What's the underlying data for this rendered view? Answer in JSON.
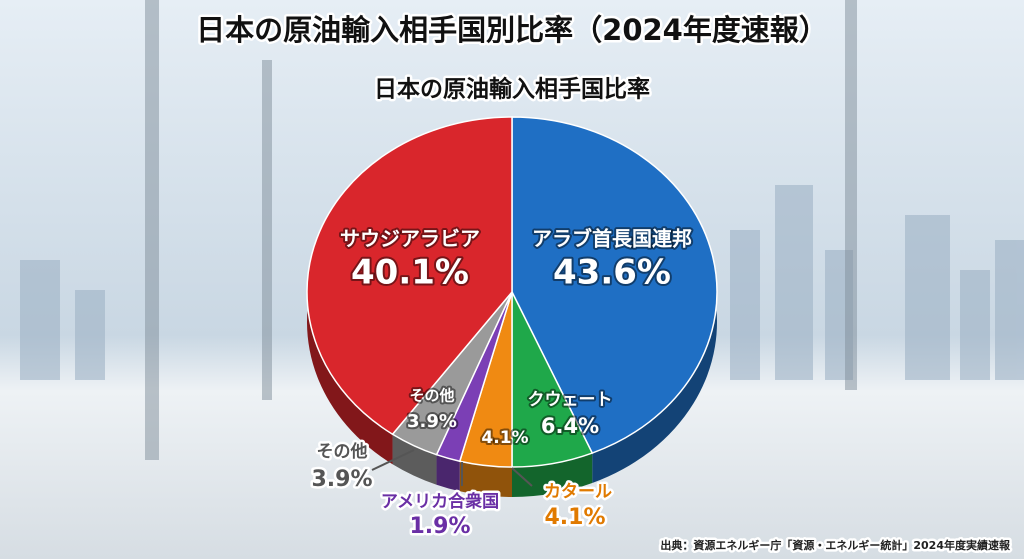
{
  "chart_data": {
    "type": "pie",
    "title": "日本の原油輸入相手国別比率（2024年度速報）",
    "subtitle": "日本の原油輸入相手国比率",
    "categories": [
      "アラブ首長国連邦",
      "クウェート",
      "カタール",
      "アメリカ合衆国",
      "その他",
      "サウジアラビア"
    ],
    "values": [
      43.6,
      6.4,
      4.1,
      1.9,
      3.9,
      40.1
    ],
    "value_labels": [
      "43.6%",
      "6.4%",
      "4.1%",
      "1.9%",
      "3.9%",
      "40.1%"
    ],
    "colors": [
      "#1f6fc4",
      "#1fa84a",
      "#f08a12",
      "#7b3fb5",
      "#9a9a9a",
      "#d9262c"
    ],
    "source": "出典：資源エネルギー庁「資源・エネルギー統計」2024年度実績速報"
  }
}
